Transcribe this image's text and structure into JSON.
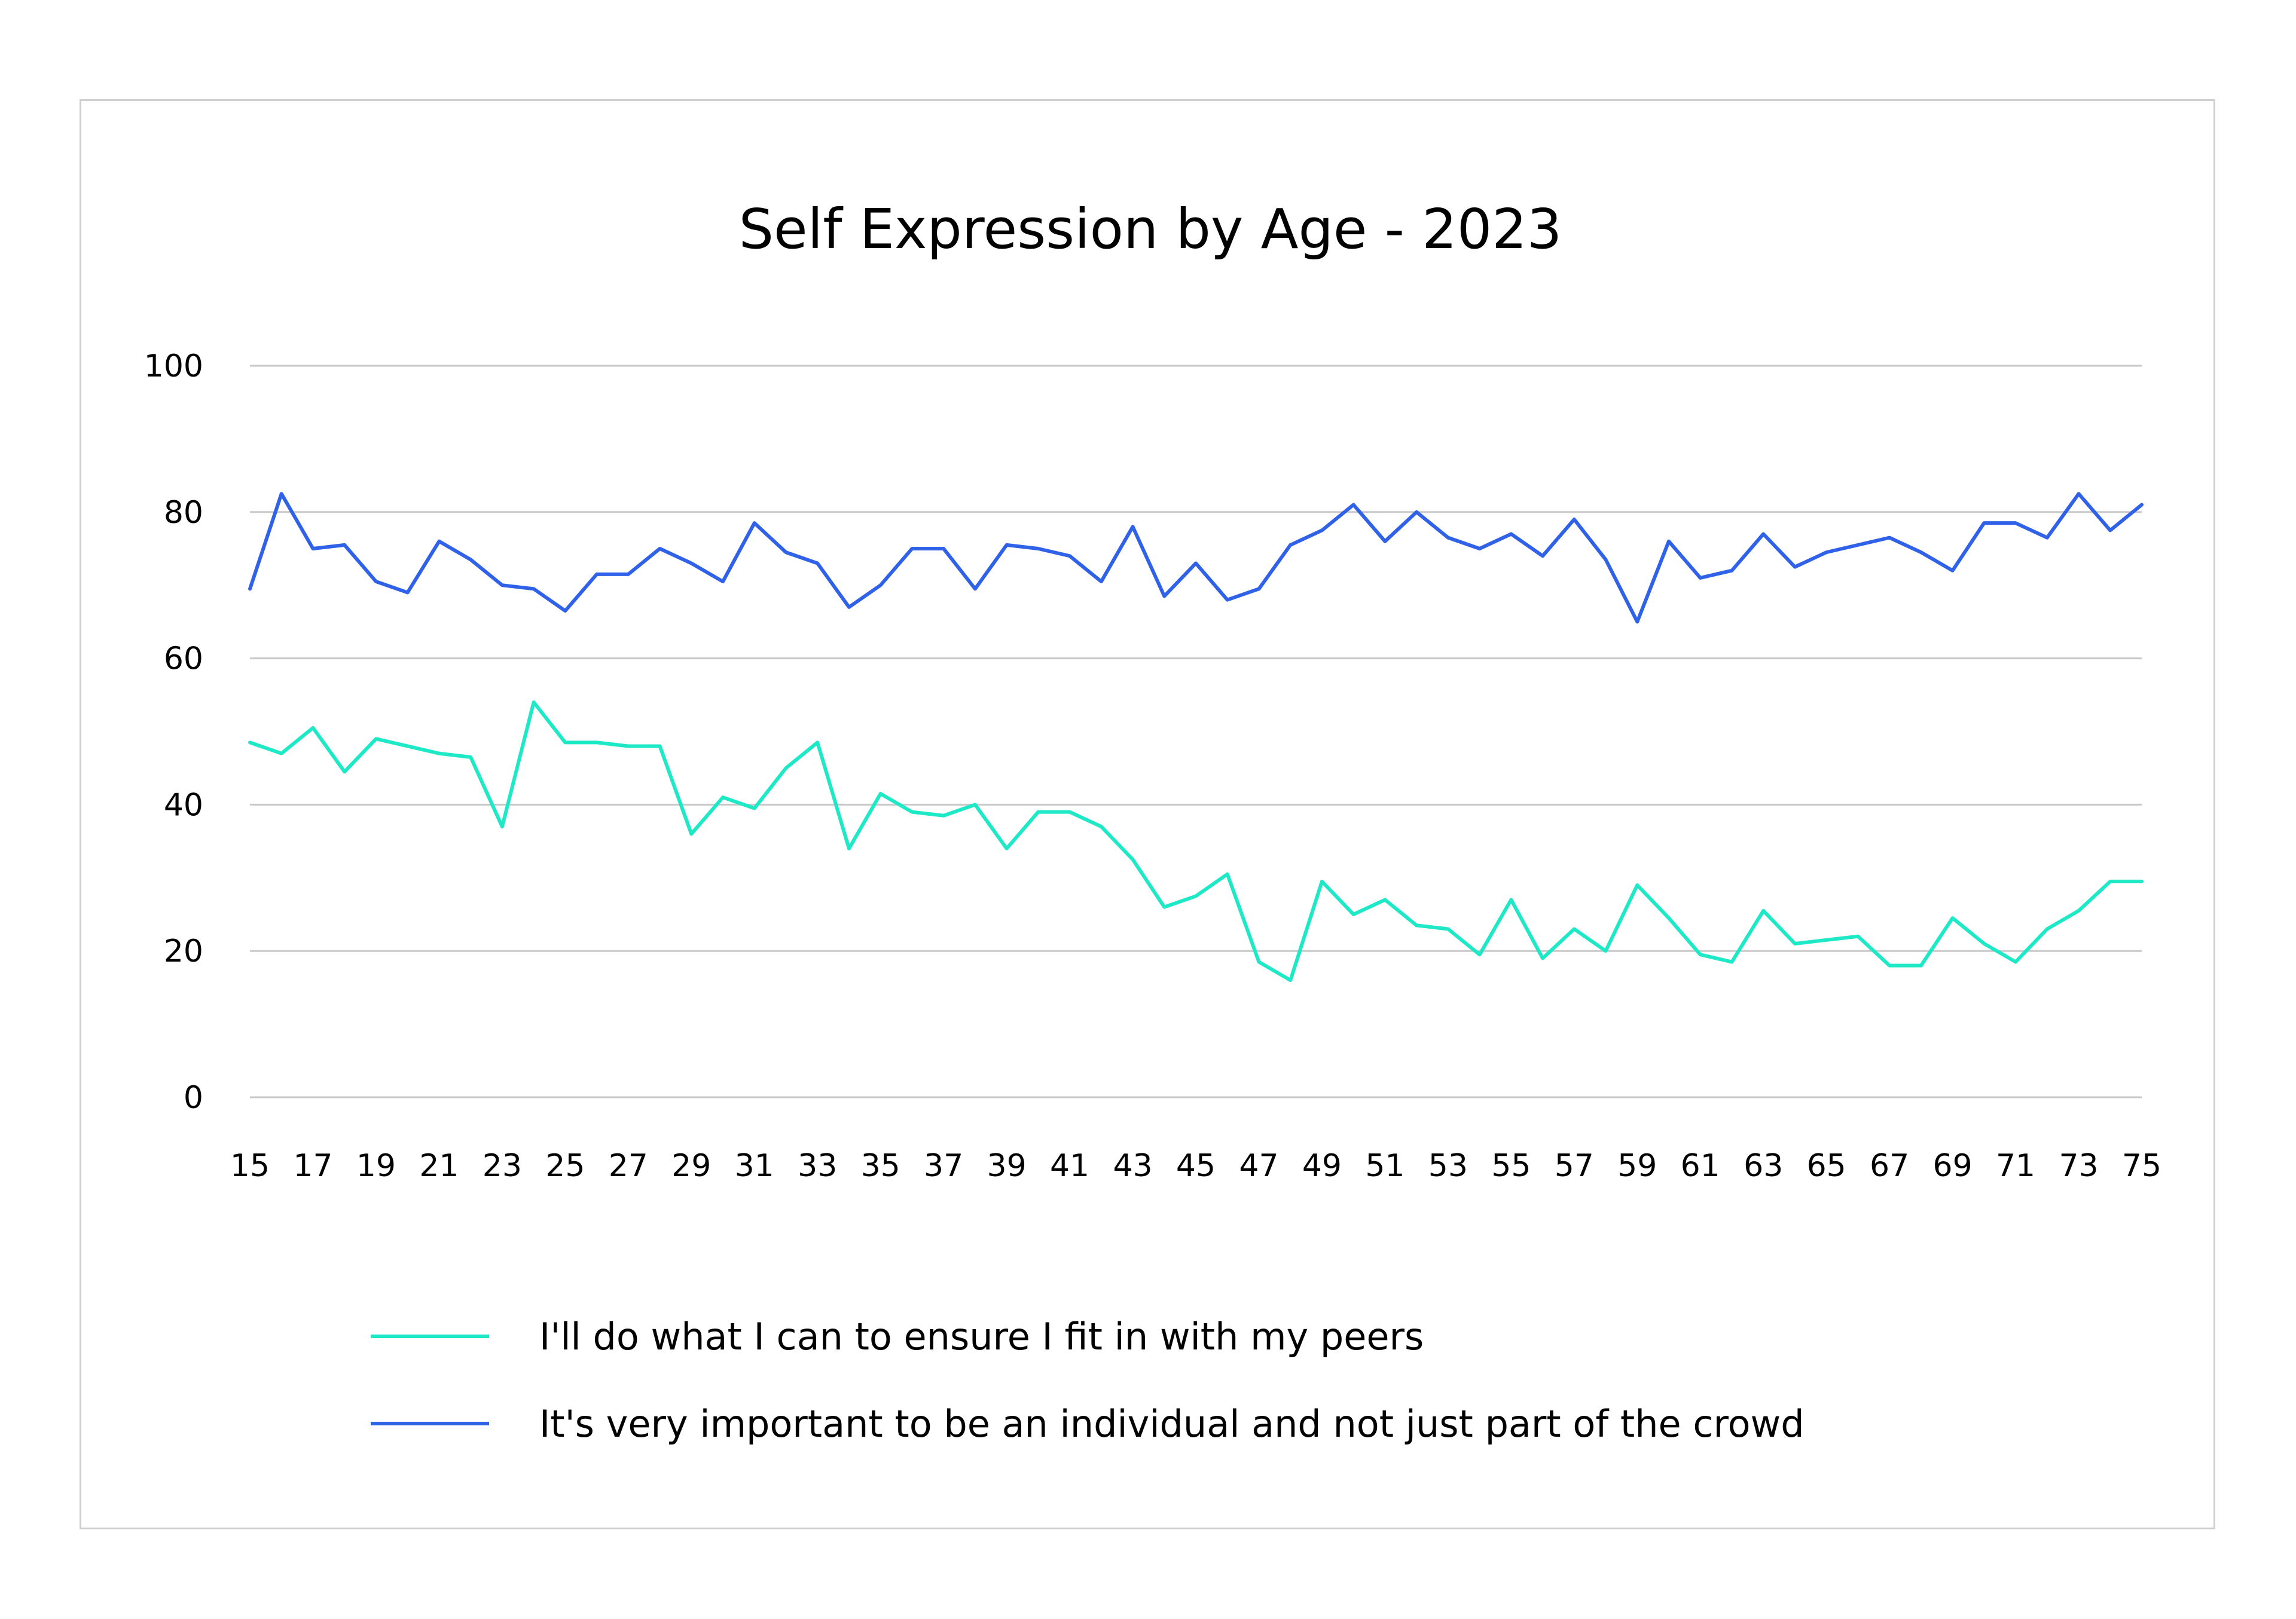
{
  "chart_data": {
    "type": "line",
    "title": "Self Expression by Age - 2023",
    "xlabel": "",
    "ylabel": "",
    "ylim": [
      0,
      100
    ],
    "yticks": [
      0,
      20,
      40,
      60,
      80,
      100
    ],
    "x": [
      15,
      16,
      17,
      18,
      19,
      20,
      21,
      22,
      23,
      24,
      25,
      26,
      27,
      28,
      29,
      30,
      31,
      32,
      33,
      34,
      35,
      36,
      37,
      38,
      39,
      40,
      41,
      42,
      43,
      44,
      45,
      46,
      47,
      48,
      49,
      50,
      51,
      52,
      53,
      54,
      55,
      56,
      57,
      58,
      59,
      60,
      61,
      62,
      63,
      64,
      65,
      66,
      67,
      68,
      69,
      70,
      71,
      72,
      73,
      74,
      75
    ],
    "xtick_labels": [
      "15",
      "17",
      "19",
      "21",
      "23",
      "25",
      "27",
      "29",
      "31",
      "33",
      "35",
      "37",
      "39",
      "41",
      "43",
      "45",
      "47",
      "49",
      "51",
      "53",
      "55",
      "57",
      "59",
      "61",
      "63",
      "65",
      "67",
      "69",
      "71",
      "73",
      "75"
    ],
    "grid": true,
    "legend_position": "bottom",
    "series": [
      {
        "name": "I'll do what I can to ensure I fit in with my peers",
        "color": "#1de9c6",
        "values": [
          48.5,
          47,
          50.5,
          44.5,
          49,
          48,
          47,
          46.5,
          37,
          54,
          48.5,
          48.5,
          48,
          48,
          36,
          41,
          39.5,
          45,
          48.5,
          34,
          41.5,
          39,
          38.5,
          40,
          34,
          39,
          39,
          37,
          32.5,
          26,
          27.5,
          30.5,
          18.5,
          16,
          29.5,
          25,
          27,
          23.5,
          23,
          19.5,
          27,
          19,
          23,
          20,
          29,
          24.5,
          19.5,
          18.5,
          25.5,
          21,
          21.5,
          22,
          18,
          18,
          24.5,
          21,
          18.5,
          23,
          25.5,
          29.5,
          29.5
        ]
      },
      {
        "name": "It's very important to be an individual and not just part of the crowd",
        "color": "#2f62e8",
        "values": [
          69.5,
          82.5,
          75,
          75.5,
          70.5,
          69,
          76,
          73.5,
          70,
          69.5,
          66.5,
          71.5,
          71.5,
          75,
          73,
          70.5,
          78.5,
          74.5,
          73,
          67,
          70,
          75,
          75,
          69.5,
          75.5,
          75,
          74,
          70.5,
          78,
          68.5,
          73,
          68,
          69.5,
          75.5,
          77.5,
          81,
          76,
          80,
          76.5,
          75,
          77,
          74,
          79,
          73.5,
          65,
          76,
          71,
          72,
          77,
          72.5,
          74.5,
          75.5,
          76.5,
          74.5,
          72,
          78.5,
          78.5,
          76.5,
          82.5,
          77.5,
          81
        ]
      }
    ]
  }
}
